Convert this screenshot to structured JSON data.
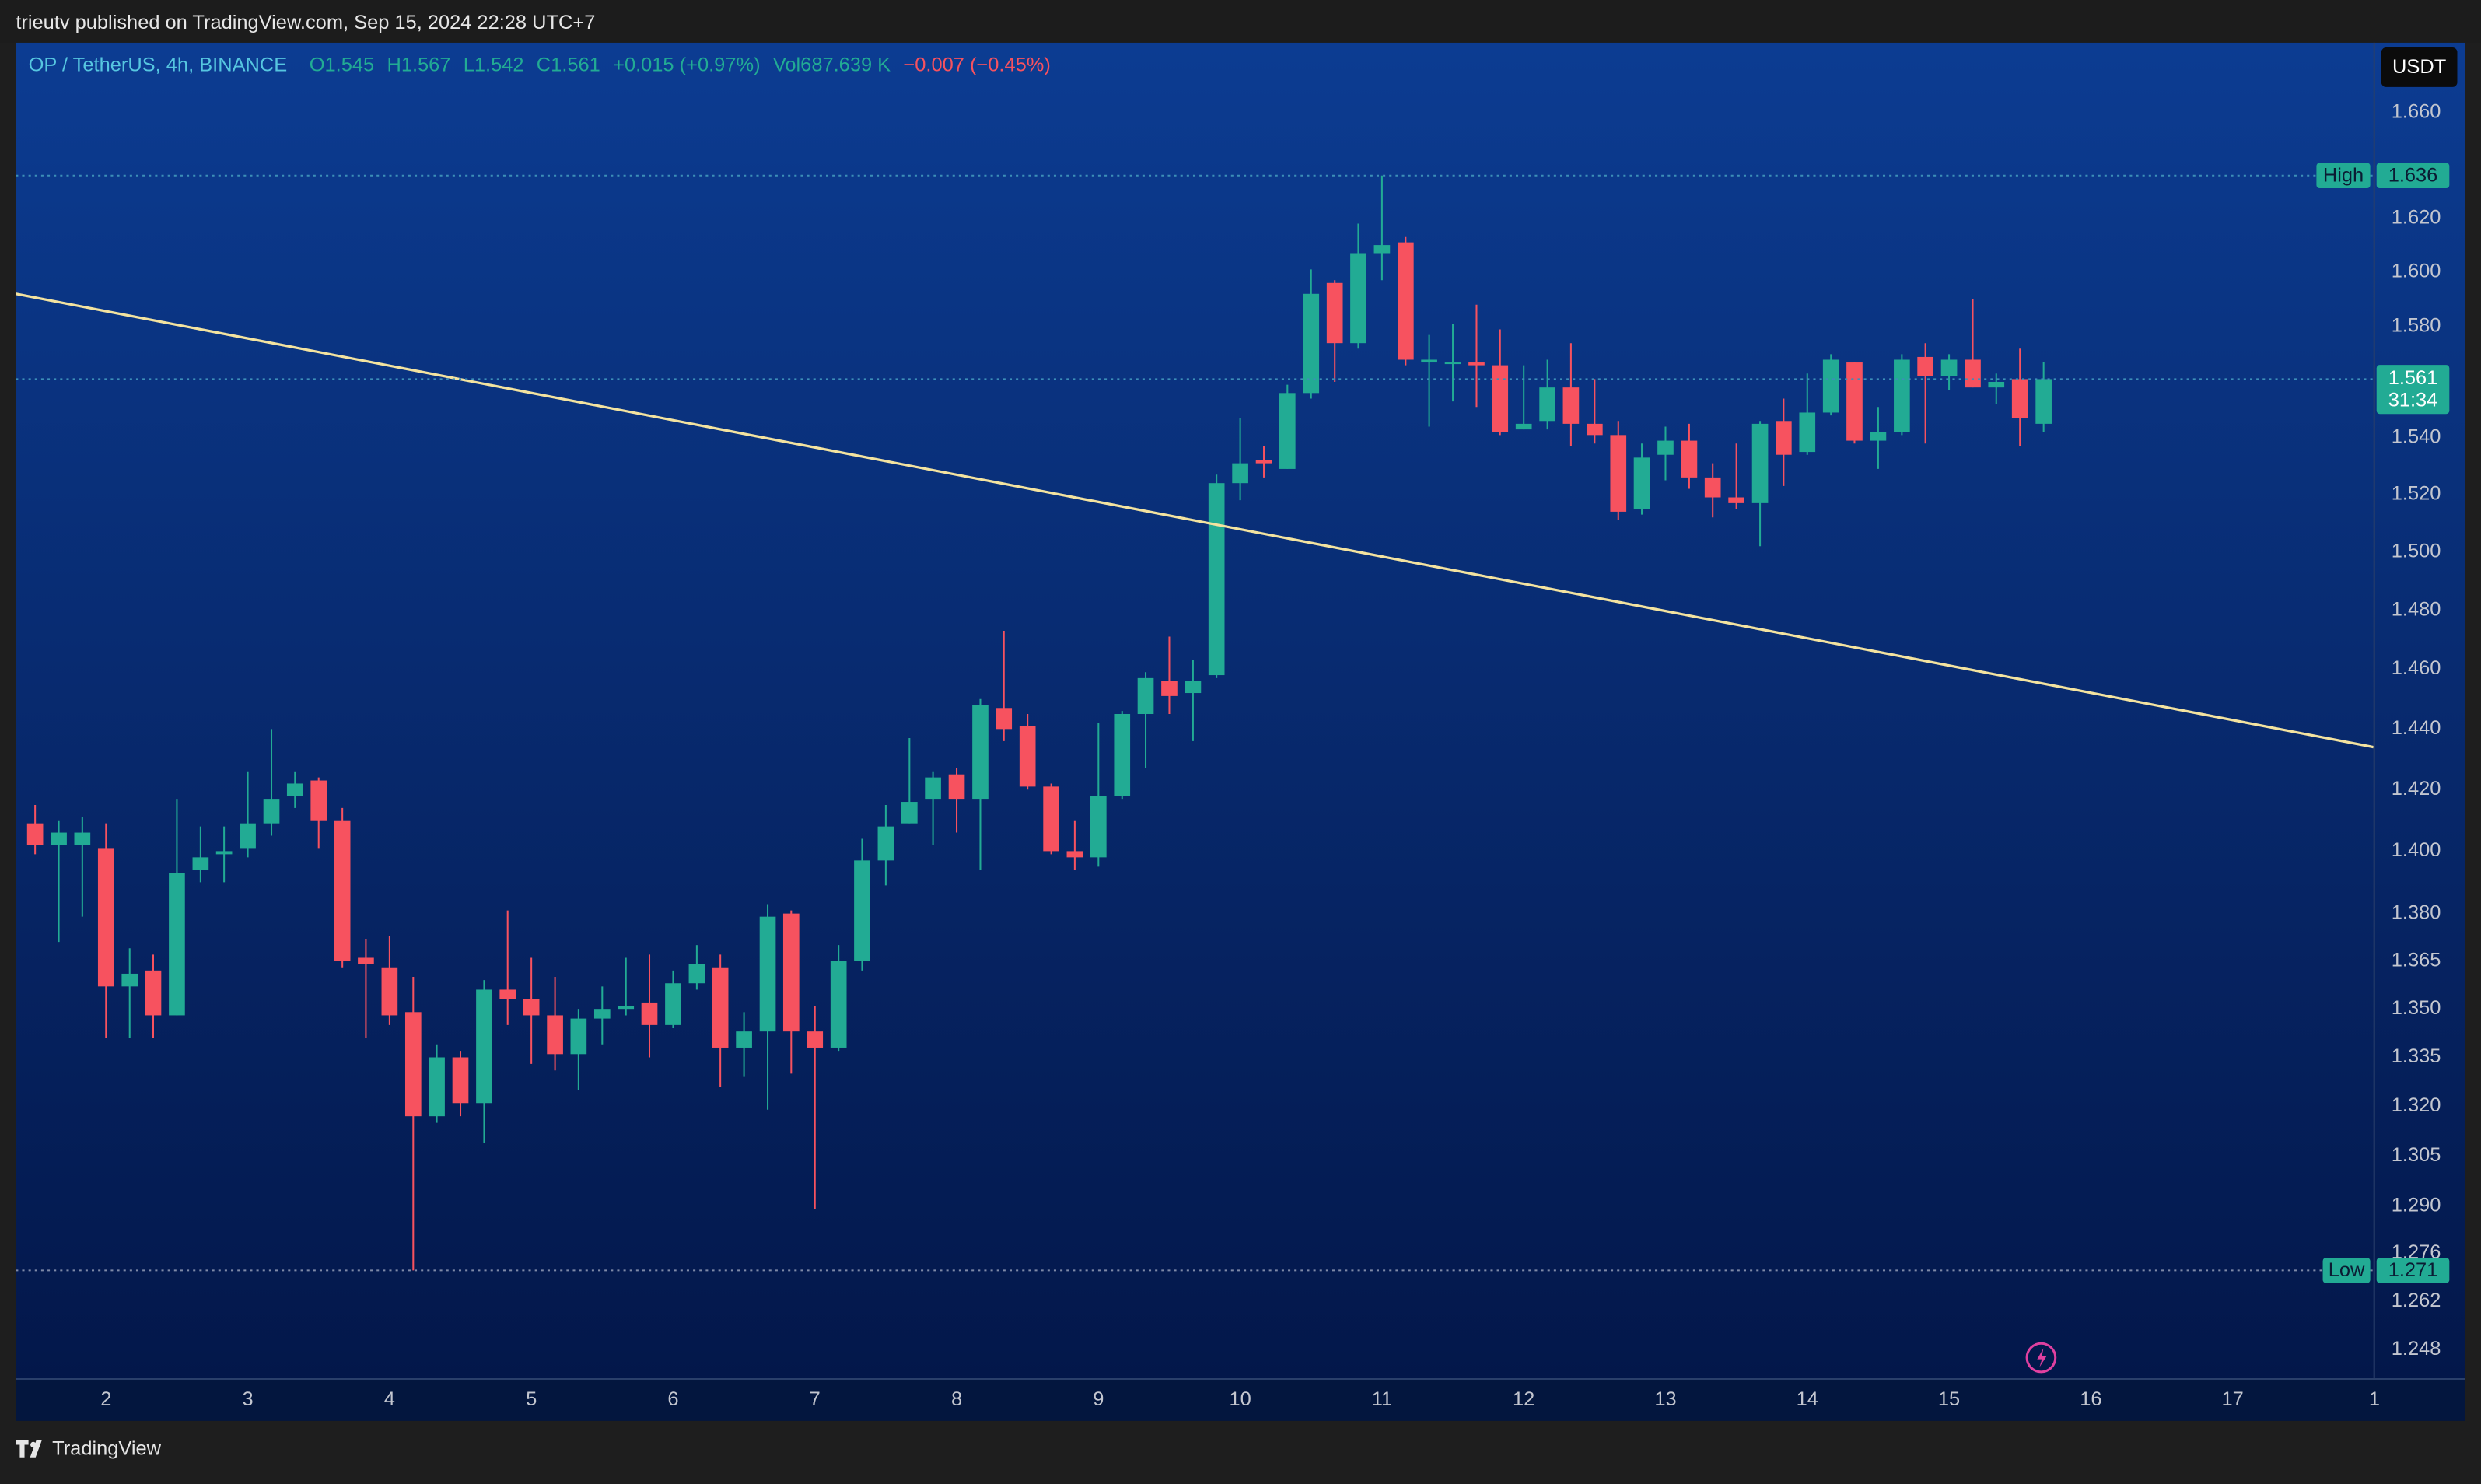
{
  "header": {
    "text": "trieutv published on TradingView.com, Sep 15, 2024 22:28 UTC+7"
  },
  "chart_data": {
    "type": "candlestick",
    "symbol": "OP / TetherUS, 4h, BINANCE",
    "legend_letters": [
      "O",
      "H",
      "L",
      "C"
    ],
    "change": "+0.015 (+0.97%)",
    "volume": "Vol687.639 K",
    "volume_change": "−0.007 (−0.45%)",
    "currency": "USDT",
    "countdown": "31:34",
    "high_label": "High",
    "low_label": "Low",
    "up_color": "#22ab94",
    "down_color": "#f7525f",
    "log_y": true,
    "grid": false,
    "x": [
      1.5,
      1.667,
      1.833,
      2,
      2.167,
      2.333,
      2.5,
      2.667,
      2.833,
      3,
      3.167,
      3.333,
      3.5,
      3.667,
      3.833,
      4,
      4.167,
      4.333,
      4.5,
      4.667,
      4.833,
      5,
      5.167,
      5.333,
      5.5,
      5.667,
      5.833,
      6,
      6.167,
      6.333,
      6.5,
      6.667,
      6.833,
      7,
      7.167,
      7.333,
      7.5,
      7.667,
      7.833,
      8,
      8.167,
      8.333,
      8.5,
      8.667,
      8.833,
      9,
      9.167,
      9.333,
      9.5,
      9.667,
      9.833,
      10,
      10.167,
      10.333,
      10.5,
      10.667,
      10.833,
      11,
      11.167,
      11.333,
      11.5,
      11.667,
      11.833,
      12,
      12.167,
      12.333,
      12.5,
      12.667,
      12.833,
      13,
      13.167,
      13.333,
      13.5,
      13.667,
      13.833,
      14,
      14.167,
      14.333,
      14.5,
      14.667,
      14.833,
      15,
      15.167,
      15.333,
      15.5,
      15.667
    ],
    "open": [
      1.409,
      1.402,
      1.402,
      1.401,
      1.357,
      1.362,
      1.348,
      1.394,
      1.399,
      1.401,
      1.409,
      1.418,
      1.423,
      1.41,
      1.366,
      1.363,
      1.349,
      1.317,
      1.335,
      1.321,
      1.356,
      1.353,
      1.348,
      1.336,
      1.347,
      1.35,
      1.352,
      1.345,
      1.358,
      1.363,
      1.338,
      1.343,
      1.38,
      1.343,
      1.338,
      1.365,
      1.397,
      1.409,
      1.417,
      1.425,
      1.417,
      1.447,
      1.441,
      1.421,
      1.4,
      1.398,
      1.418,
      1.445,
      1.456,
      1.452,
      1.458,
      1.524,
      1.532,
      1.529,
      1.556,
      1.596,
      1.574,
      1.607,
      1.611,
      1.567,
      1.567,
      1.567,
      1.566,
      1.543,
      1.546,
      1.558,
      1.545,
      1.541,
      1.515,
      1.534,
      1.539,
      1.526,
      1.519,
      1.517,
      1.546,
      1.535,
      1.549,
      1.567,
      1.539,
      1.542,
      1.569,
      1.562,
      1.568,
      1.558,
      1.561,
      1.545
    ],
    "high": [
      1.415,
      1.41,
      1.411,
      1.409,
      1.369,
      1.367,
      1.417,
      1.408,
      1.408,
      1.426,
      1.44,
      1.426,
      1.424,
      1.414,
      1.372,
      1.373,
      1.36,
      1.339,
      1.337,
      1.359,
      1.381,
      1.366,
      1.36,
      1.35,
      1.357,
      1.366,
      1.367,
      1.362,
      1.37,
      1.367,
      1.349,
      1.383,
      1.381,
      1.351,
      1.37,
      1.404,
      1.415,
      1.437,
      1.426,
      1.427,
      1.45,
      1.473,
      1.445,
      1.422,
      1.41,
      1.442,
      1.446,
      1.459,
      1.471,
      1.463,
      1.527,
      1.547,
      1.537,
      1.559,
      1.601,
      1.597,
      1.618,
      1.636,
      1.613,
      1.577,
      1.581,
      1.588,
      1.579,
      1.566,
      1.568,
      1.574,
      1.561,
      1.546,
      1.538,
      1.544,
      1.545,
      1.531,
      1.538,
      1.546,
      1.554,
      1.563,
      1.57,
      1.567,
      1.551,
      1.57,
      1.574,
      1.57,
      1.59,
      1.563,
      1.572,
      1.567
    ],
    "low": [
      1.399,
      1.371,
      1.379,
      1.341,
      1.341,
      1.341,
      1.348,
      1.39,
      1.39,
      1.398,
      1.405,
      1.414,
      1.401,
      1.363,
      1.341,
      1.345,
      1.271,
      1.315,
      1.317,
      1.309,
      1.345,
      1.333,
      1.331,
      1.325,
      1.339,
      1.348,
      1.335,
      1.344,
      1.356,
      1.326,
      1.329,
      1.319,
      1.33,
      1.289,
      1.337,
      1.362,
      1.389,
      1.409,
      1.402,
      1.406,
      1.394,
      1.436,
      1.42,
      1.399,
      1.394,
      1.395,
      1.417,
      1.427,
      1.445,
      1.436,
      1.457,
      1.518,
      1.526,
      1.529,
      1.554,
      1.56,
      1.572,
      1.597,
      1.566,
      1.544,
      1.553,
      1.551,
      1.541,
      1.543,
      1.543,
      1.537,
      1.538,
      1.511,
      1.513,
      1.525,
      1.522,
      1.512,
      1.515,
      1.502,
      1.523,
      1.534,
      1.548,
      1.538,
      1.529,
      1.541,
      1.538,
      1.557,
      1.558,
      1.552,
      1.537,
      1.542
    ],
    "close": [
      1.402,
      1.406,
      1.406,
      1.357,
      1.361,
      1.348,
      1.393,
      1.398,
      1.4,
      1.409,
      1.417,
      1.422,
      1.41,
      1.365,
      1.364,
      1.348,
      1.317,
      1.335,
      1.321,
      1.356,
      1.353,
      1.348,
      1.336,
      1.347,
      1.35,
      1.351,
      1.345,
      1.358,
      1.364,
      1.338,
      1.343,
      1.379,
      1.343,
      1.338,
      1.365,
      1.397,
      1.408,
      1.416,
      1.424,
      1.417,
      1.448,
      1.44,
      1.421,
      1.4,
      1.398,
      1.418,
      1.445,
      1.457,
      1.451,
      1.456,
      1.524,
      1.531,
      1.531,
      1.556,
      1.592,
      1.574,
      1.607,
      1.61,
      1.568,
      1.568,
      1.567,
      1.566,
      1.542,
      1.545,
      1.558,
      1.545,
      1.541,
      1.514,
      1.533,
      1.539,
      1.526,
      1.519,
      1.517,
      1.545,
      1.534,
      1.549,
      1.568,
      1.539,
      1.542,
      1.568,
      1.562,
      1.568,
      1.558,
      1.56,
      1.547,
      1.561
    ],
    "xlim": [
      1.364,
      17.993
    ],
    "ylim": [
      1.2398,
      1.6869
    ],
    "xticks": [
      2,
      3,
      4,
      5,
      6,
      7,
      8,
      9,
      10,
      11,
      12,
      13,
      14,
      15,
      16,
      17,
      {
        "value": 18,
        "label": "1"
      }
    ],
    "yticks": [
      {
        "value": 1.66,
        "label": "1.660"
      },
      {
        "value": 1.62,
        "label": "1.620"
      },
      {
        "value": 1.6,
        "label": "1.600"
      },
      {
        "value": 1.58,
        "label": "1.580"
      },
      {
        "value": 1.54,
        "label": "1.540"
      },
      {
        "value": 1.52,
        "label": "1.520"
      },
      {
        "value": 1.5,
        "label": "1.500"
      },
      {
        "value": 1.48,
        "label": "1.480"
      },
      {
        "value": 1.46,
        "label": "1.460"
      },
      {
        "value": 1.44,
        "label": "1.440"
      },
      {
        "value": 1.42,
        "label": "1.420"
      },
      {
        "value": 1.4,
        "label": "1.400"
      },
      {
        "value": 1.38,
        "label": "1.380"
      },
      1.365,
      {
        "value": 1.35,
        "label": "1.350"
      },
      1.335,
      {
        "value": 1.32,
        "label": "1.320"
      },
      1.305,
      {
        "value": 1.29,
        "label": "1.290"
      },
      1.276,
      1.262,
      1.248
    ],
    "trendline": {
      "x": [
        1.364,
        17.993
      ],
      "y": [
        1.592,
        1.434
      ],
      "color": "#f3e3a0"
    }
  },
  "footer": {
    "brand": "TradingView"
  }
}
